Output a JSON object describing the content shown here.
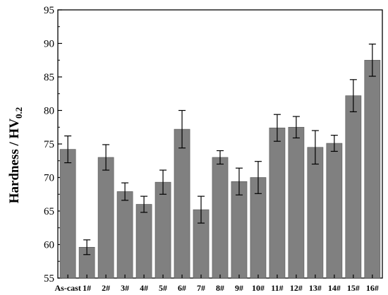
{
  "chart_data": {
    "type": "bar",
    "title": "",
    "xlabel": "",
    "ylabel": "Hardness / HV",
    "ylabel_subscript": "0.2",
    "ylim": [
      55,
      95
    ],
    "yticks": [
      55,
      60,
      65,
      70,
      75,
      80,
      85,
      90,
      95
    ],
    "categories": [
      "As-cast",
      "1#",
      "2#",
      "3#",
      "4#",
      "5#",
      "6#",
      "7#",
      "8#",
      "9#",
      "10#",
      "11#",
      "12#",
      "13#",
      "14#",
      "15#",
      "16#"
    ],
    "values": [
      74.2,
      59.6,
      73.0,
      67.9,
      66.0,
      69.3,
      77.2,
      65.2,
      73.0,
      69.4,
      70.0,
      77.4,
      77.5,
      74.5,
      75.1,
      82.2,
      87.5
    ],
    "errors": [
      2.0,
      1.1,
      1.9,
      1.3,
      1.2,
      1.8,
      2.8,
      2.0,
      1.0,
      2.0,
      2.4,
      2.0,
      1.6,
      2.5,
      1.2,
      2.4,
      2.4
    ],
    "bar_color": "#808080",
    "grid": false,
    "legend": "none"
  }
}
